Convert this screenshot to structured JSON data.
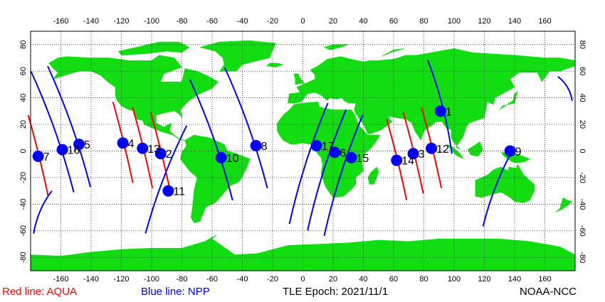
{
  "footer": {
    "aqua_legend": "Red line: AQUA",
    "npp_legend": "Blue line: NPP",
    "epoch": "TLE Epoch: 2021/11/1",
    "credit": "NOAA-NCC"
  },
  "colors": {
    "land": "#11dd11",
    "ocean": "#ffffff",
    "aqua_track": "#ff0000",
    "npp_track": "#0000ff",
    "pass_marker": "#0000ff",
    "grid": "#000000"
  },
  "axes": {
    "lon_ticks": [
      "-160",
      "-140",
      "-120",
      "-100",
      "-80",
      "-60",
      "-40",
      "-20",
      "0",
      "20",
      "40",
      "60",
      "80",
      "100",
      "120",
      "140",
      "160"
    ],
    "lat_ticks": [
      "80",
      "60",
      "40",
      "20",
      "0",
      "-20",
      "-40",
      "-60",
      "-80"
    ],
    "lon_range": [
      -180,
      180
    ],
    "lat_range": [
      -90,
      90
    ]
  },
  "passes": [
    {
      "id": "1",
      "satellite": "NPP",
      "lon": 91,
      "lat": 30
    },
    {
      "id": "2",
      "satellite": "AQUA",
      "lon": -94,
      "lat": -2
    },
    {
      "id": "3",
      "satellite": "AQUA",
      "lon": 73,
      "lat": -2
    },
    {
      "id": "4",
      "satellite": "AQUA",
      "lon": -119,
      "lat": 6
    },
    {
      "id": "5",
      "satellite": "NPP",
      "lon": -148,
      "lat": 5
    },
    {
      "id": "6",
      "satellite": "NPP",
      "lon": 21,
      "lat": -1
    },
    {
      "id": "7",
      "satellite": "AQUA",
      "lon": -175,
      "lat": -4
    },
    {
      "id": "8",
      "satellite": "NPP",
      "lon": -31,
      "lat": 4
    },
    {
      "id": "9",
      "satellite": "NPP",
      "lon": 137,
      "lat": 0
    },
    {
      "id": "10",
      "satellite": "NPP",
      "lon": -54,
      "lat": -5
    },
    {
      "id": "11",
      "satellite": "NPP",
      "lon": -89,
      "lat": -30
    },
    {
      "id": "12",
      "satellite": "AQUA",
      "lon": 85,
      "lat": 2
    },
    {
      "id": "13",
      "satellite": "AQUA",
      "lon": -106,
      "lat": 2
    },
    {
      "id": "14",
      "satellite": "AQUA",
      "lon": 62,
      "lat": -7
    },
    {
      "id": "15",
      "satellite": "NPP",
      "lon": 32,
      "lat": -5
    },
    {
      "id": "16",
      "satellite": "NPP",
      "lon": -159,
      "lat": 1
    },
    {
      "id": "17",
      "satellite": "NPP",
      "lon": 9,
      "lat": 4
    }
  ]
}
